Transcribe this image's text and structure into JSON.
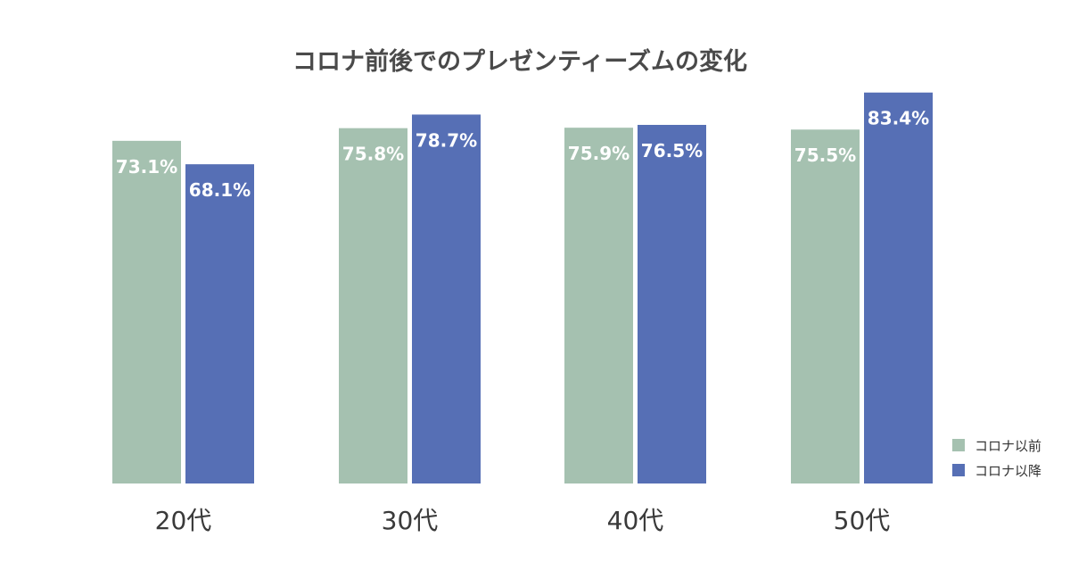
{
  "chart_data": {
    "type": "bar",
    "title": "コロナ前後でのプレゼンティーズムの変化",
    "xlabel": "",
    "ylabel": "",
    "categories": [
      "20代",
      "30代",
      "40代",
      "50代"
    ],
    "series": [
      {
        "name": "コロナ以前",
        "color": "#a5c1b0",
        "values": [
          73.1,
          75.8,
          75.9,
          75.5
        ],
        "labels": [
          "73.1%",
          "75.8%",
          "75.9%",
          "75.5%"
        ]
      },
      {
        "name": "コロナ以降",
        "color": "#566fb5",
        "values": [
          68.1,
          78.7,
          76.5,
          83.4
        ],
        "labels": [
          "68.1%",
          "78.7%",
          "76.5%",
          "83.4%"
        ]
      }
    ],
    "grid": false,
    "legend_position": "bottom-right"
  }
}
